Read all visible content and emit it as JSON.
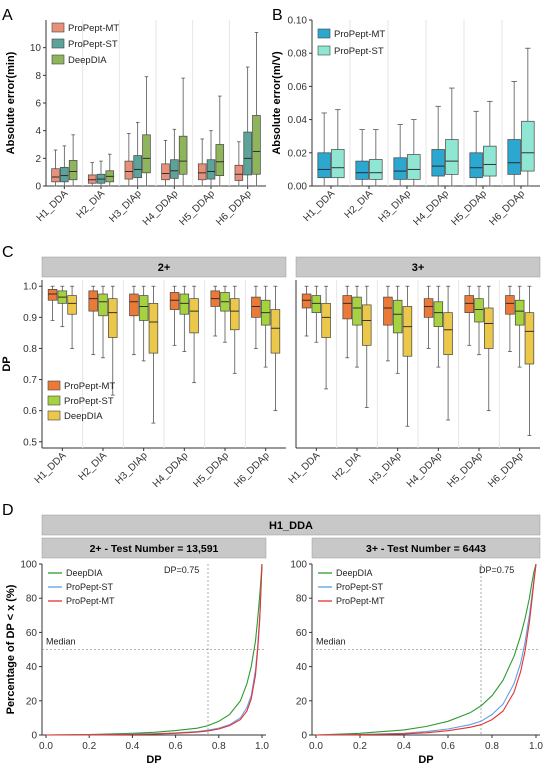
{
  "figure": {
    "panels": [
      {
        "letter": "A"
      },
      {
        "letter": "B"
      },
      {
        "letter": "C",
        "facets": [
          "2+",
          "3+"
        ]
      },
      {
        "letter": "D",
        "title": "H1_DDA",
        "facets": [
          "2+ - Test Number = 13,591",
          "3+ - Test Number = 6443"
        ]
      }
    ]
  },
  "colors": {
    "A": [
      "#e8917a",
      "#5ca39a",
      "#8fb55c"
    ],
    "B": [
      "#2ba7d0",
      "#8fe6d3"
    ],
    "C": [
      "#eb7a38",
      "#a5d23e",
      "#ecc84a"
    ],
    "D": {
      "DeepDIA": "#2e9a2e",
      "ProPept-ST": "#5ba1e6",
      "ProPept-MT": "#e8312e"
    },
    "strip": "#c8c8c8"
  },
  "chart_data": [
    {
      "panel": "A",
      "type": "box",
      "ylabel": "Absolute error(min)",
      "ylim": [
        0,
        12
      ],
      "yticks": [
        0,
        2,
        4,
        6,
        8,
        10
      ],
      "categories": [
        "H1_DDA",
        "H2_DIA",
        "H3_DIAp",
        "H4_DDAp",
        "H5_DDAp",
        "H6_DDAp"
      ],
      "legend": "top-left",
      "series": [
        {
          "name": "ProPept-MT",
          "boxes": [
            [
              0,
              0.3,
              0.65,
              1.25,
              2.6
            ],
            [
              0,
              0.2,
              0.45,
              0.8,
              1.7
            ],
            [
              0,
              0.5,
              1.05,
              1.8,
              3.8
            ],
            [
              0,
              0.45,
              0.9,
              1.6,
              3.3
            ],
            [
              0,
              0.45,
              0.95,
              1.6,
              3.4
            ],
            [
              0,
              0.4,
              0.85,
              1.5,
              3.2
            ]
          ]
        },
        {
          "name": "ProPept-ST",
          "boxes": [
            [
              0,
              0.3,
              0.75,
              1.35,
              2.9
            ],
            [
              0,
              0.2,
              0.5,
              0.85,
              1.8
            ],
            [
              0,
              0.6,
              1.2,
              2.2,
              4.6
            ],
            [
              0,
              0.55,
              1.1,
              1.9,
              4.1
            ],
            [
              0,
              0.5,
              1.05,
              1.9,
              4.0
            ],
            [
              0,
              0.8,
              2.0,
              3.9,
              8.6
            ]
          ]
        },
        {
          "name": "DeepDIA",
          "boxes": [
            [
              0,
              0.45,
              1.05,
              1.85,
              3.7
            ],
            [
              0,
              0.3,
              0.7,
              1.1,
              2.3
            ],
            [
              0,
              0.95,
              2.0,
              3.7,
              7.9
            ],
            [
              0,
              0.85,
              1.8,
              3.6,
              7.8
            ],
            [
              0,
              0.75,
              1.75,
              3.0,
              6.5
            ],
            [
              0,
              0.85,
              2.5,
              5.1,
              11.1
            ]
          ]
        }
      ]
    },
    {
      "panel": "B",
      "type": "box",
      "ylabel": "Absolute error(m/V)",
      "ylim": [
        0,
        0.1
      ],
      "yticks": [
        "0.00",
        "0.02",
        "0.04",
        "0.06",
        "0.08",
        "0.10"
      ],
      "categories": [
        "H1_DDA",
        "H2_DIA",
        "H3_DIAp",
        "H4_DDAp",
        "H5_DDAp",
        "H6_DDAp"
      ],
      "legend": "top-left",
      "series": [
        {
          "name": "ProPept-MT",
          "boxes": [
            [
              0,
              0.005,
              0.01,
              0.02,
              0.044
            ],
            [
              0,
              0.004,
              0.008,
              0.015,
              0.034
            ],
            [
              0,
              0.004,
              0.009,
              0.017,
              0.037
            ],
            [
              0,
              0.006,
              0.012,
              0.022,
              0.048
            ],
            [
              0,
              0.005,
              0.011,
              0.02,
              0.045
            ],
            [
              0,
              0.007,
              0.014,
              0.028,
              0.063
            ]
          ]
        },
        {
          "name": "ProPept-ST",
          "boxes": [
            [
              0,
              0.005,
              0.011,
              0.022,
              0.046
            ],
            [
              0,
              0.004,
              0.008,
              0.016,
              0.034
            ],
            [
              0,
              0.004,
              0.01,
              0.019,
              0.04
            ],
            [
              0,
              0.007,
              0.015,
              0.028,
              0.059
            ],
            [
              0,
              0.006,
              0.013,
              0.024,
              0.051
            ],
            [
              0,
              0.009,
              0.02,
              0.039,
              0.083
            ]
          ]
        }
      ]
    },
    {
      "panel": "C",
      "type": "box",
      "ylabel": "DP",
      "ylim": [
        0.48,
        1.02
      ],
      "yticks": [
        "0.5",
        "0.6",
        "0.7",
        "0.8",
        "0.9",
        "1.0"
      ],
      "categories": [
        "H1_DDA",
        "H2_DIA",
        "H3_DIAp",
        "H4_DDAp",
        "H5_DDAp",
        "H6_DDAp"
      ],
      "legend": "bottom-left",
      "series": [
        {
          "name": "ProPept-MT",
          "boxes": {
            "2+": [
              [
                0.89,
                0.955,
                0.975,
                0.99,
                1.0
              ],
              [
                0.78,
                0.92,
                0.96,
                0.985,
                1.0
              ],
              [
                0.78,
                0.905,
                0.95,
                0.975,
                1.0
              ],
              [
                0.81,
                0.925,
                0.955,
                0.98,
                1.0
              ],
              [
                0.84,
                0.935,
                0.96,
                0.985,
                1.0
              ],
              [
                0.8,
                0.9,
                0.935,
                0.965,
                1.0
              ]
            ],
            "3+": [
              [
                0.84,
                0.93,
                0.955,
                0.975,
                1.0
              ],
              [
                0.77,
                0.895,
                0.945,
                0.97,
                1.0
              ],
              [
                0.76,
                0.875,
                0.93,
                0.965,
                1.0
              ],
              [
                0.8,
                0.9,
                0.935,
                0.96,
                1.0
              ],
              [
                0.81,
                0.915,
                0.945,
                0.97,
                1.0
              ],
              [
                0.79,
                0.91,
                0.945,
                0.97,
                1.0
              ]
            ]
          }
        },
        {
          "name": "ProPept-ST",
          "boxes": {
            "2+": [
              [
                0.87,
                0.945,
                0.965,
                0.985,
                1.0
              ],
              [
                0.77,
                0.905,
                0.95,
                0.975,
                1.0
              ],
              [
                0.76,
                0.89,
                0.935,
                0.97,
                1.0
              ],
              [
                0.79,
                0.91,
                0.945,
                0.975,
                1.0
              ],
              [
                0.82,
                0.92,
                0.95,
                0.98,
                1.0
              ],
              [
                0.74,
                0.875,
                0.915,
                0.955,
                1.0
              ]
            ],
            "3+": [
              [
                0.82,
                0.915,
                0.945,
                0.97,
                1.0
              ],
              [
                0.74,
                0.875,
                0.93,
                0.965,
                1.0
              ],
              [
                0.72,
                0.85,
                0.91,
                0.955,
                1.0
              ],
              [
                0.74,
                0.87,
                0.915,
                0.95,
                1.0
              ],
              [
                0.78,
                0.885,
                0.925,
                0.96,
                1.0
              ],
              [
                0.74,
                0.875,
                0.92,
                0.955,
                1.0
              ]
            ]
          }
        },
        {
          "name": "DeepDIA",
          "boxes": {
            "2+": [
              [
                0.8,
                0.91,
                0.945,
                0.97,
                1.0
              ],
              [
                0.65,
                0.835,
                0.915,
                0.96,
                1.0
              ],
              [
                0.56,
                0.785,
                0.885,
                0.945,
                1.0
              ],
              [
                0.69,
                0.85,
                0.92,
                0.96,
                1.0
              ],
              [
                0.72,
                0.86,
                0.92,
                0.96,
                1.0
              ],
              [
                0.6,
                0.785,
                0.865,
                0.925,
                1.0
              ]
            ],
            "3+": [
              [
                0.67,
                0.835,
                0.9,
                0.945,
                1.0
              ],
              [
                0.61,
                0.81,
                0.89,
                0.94,
                1.0
              ],
              [
                0.55,
                0.775,
                0.87,
                0.935,
                1.0
              ],
              [
                0.57,
                0.78,
                0.86,
                0.915,
                1.0
              ],
              [
                0.6,
                0.8,
                0.88,
                0.93,
                1.0
              ],
              [
                0.52,
                0.75,
                0.855,
                0.915,
                1.0
              ]
            ]
          }
        }
      ]
    },
    {
      "panel": "D",
      "type": "line",
      "xlabel": "DP",
      "ylabel": "Percentage of DP < x (%)",
      "xlim": [
        0,
        1
      ],
      "ylim": [
        0,
        100
      ],
      "xticks": [
        "0.0",
        "0.2",
        "0.4",
        "0.6",
        "0.8",
        "1.0"
      ],
      "yticks": [
        "0",
        "20",
        "40",
        "60",
        "80",
        "100"
      ],
      "vline": {
        "x": 0.75,
        "label": "DP=0.75"
      },
      "hline": {
        "y": 50,
        "label": "Median"
      },
      "legend": "top-left",
      "facets": [
        {
          "facet": "2+ - Test Number = 13,591",
          "series": [
            {
              "name": "DeepDIA",
              "x": [
                0,
                0.2,
                0.4,
                0.5,
                0.6,
                0.7,
                0.75,
                0.8,
                0.85,
                0.9,
                0.93,
                0.95,
                0.97,
                0.98,
                0.99,
                1.0
              ],
              "y": [
                0,
                0.3,
                1,
                1.6,
                2.6,
                4,
                5.5,
                8,
                12,
                20,
                30,
                40,
                55,
                68,
                82,
                100
              ]
            },
            {
              "name": "ProPept-ST",
              "x": [
                0,
                0.2,
                0.4,
                0.5,
                0.6,
                0.7,
                0.75,
                0.8,
                0.85,
                0.9,
                0.93,
                0.95,
                0.97,
                0.98,
                0.99,
                1.0
              ],
              "y": [
                0,
                0.1,
                0.4,
                0.7,
                1.2,
                2,
                2.8,
                4,
                6,
                10,
                16,
                23,
                38,
                52,
                70,
                100
              ]
            },
            {
              "name": "ProPept-MT",
              "x": [
                0,
                0.2,
                0.4,
                0.5,
                0.6,
                0.7,
                0.75,
                0.8,
                0.85,
                0.9,
                0.93,
                0.95,
                0.97,
                0.98,
                0.99,
                1.0
              ],
              "y": [
                0,
                0.1,
                0.3,
                0.6,
                1,
                1.7,
                2.4,
                3.5,
                5.5,
                9,
                14,
                21,
                35,
                50,
                68,
                100
              ]
            }
          ]
        },
        {
          "facet": "3+ - Test Number = 6443",
          "series": [
            {
              "name": "DeepDIA",
              "x": [
                0,
                0.2,
                0.4,
                0.5,
                0.6,
                0.7,
                0.75,
                0.8,
                0.85,
                0.9,
                0.93,
                0.95,
                0.97,
                0.98,
                0.99,
                1.0
              ],
              "y": [
                0,
                1,
                3,
                5,
                8,
                13,
                17,
                23,
                32,
                46,
                58,
                68,
                80,
                88,
                95,
                100
              ]
            },
            {
              "name": "ProPept-ST",
              "x": [
                0,
                0.2,
                0.4,
                0.5,
                0.6,
                0.7,
                0.75,
                0.8,
                0.85,
                0.9,
                0.93,
                0.95,
                0.97,
                0.98,
                0.99,
                1.0
              ],
              "y": [
                0,
                0.3,
                1,
                2,
                3.5,
                6,
                8,
                12,
                18,
                30,
                42,
                54,
                70,
                80,
                90,
                100
              ]
            },
            {
              "name": "ProPept-MT",
              "x": [
                0,
                0.2,
                0.4,
                0.5,
                0.6,
                0.7,
                0.75,
                0.8,
                0.85,
                0.9,
                0.93,
                0.95,
                0.97,
                0.98,
                0.99,
                1.0
              ],
              "y": [
                0,
                0.2,
                0.7,
                1.3,
                2.5,
                4.5,
                6,
                9,
                14,
                25,
                37,
                49,
                66,
                77,
                89,
                100
              ]
            }
          ]
        }
      ]
    }
  ]
}
